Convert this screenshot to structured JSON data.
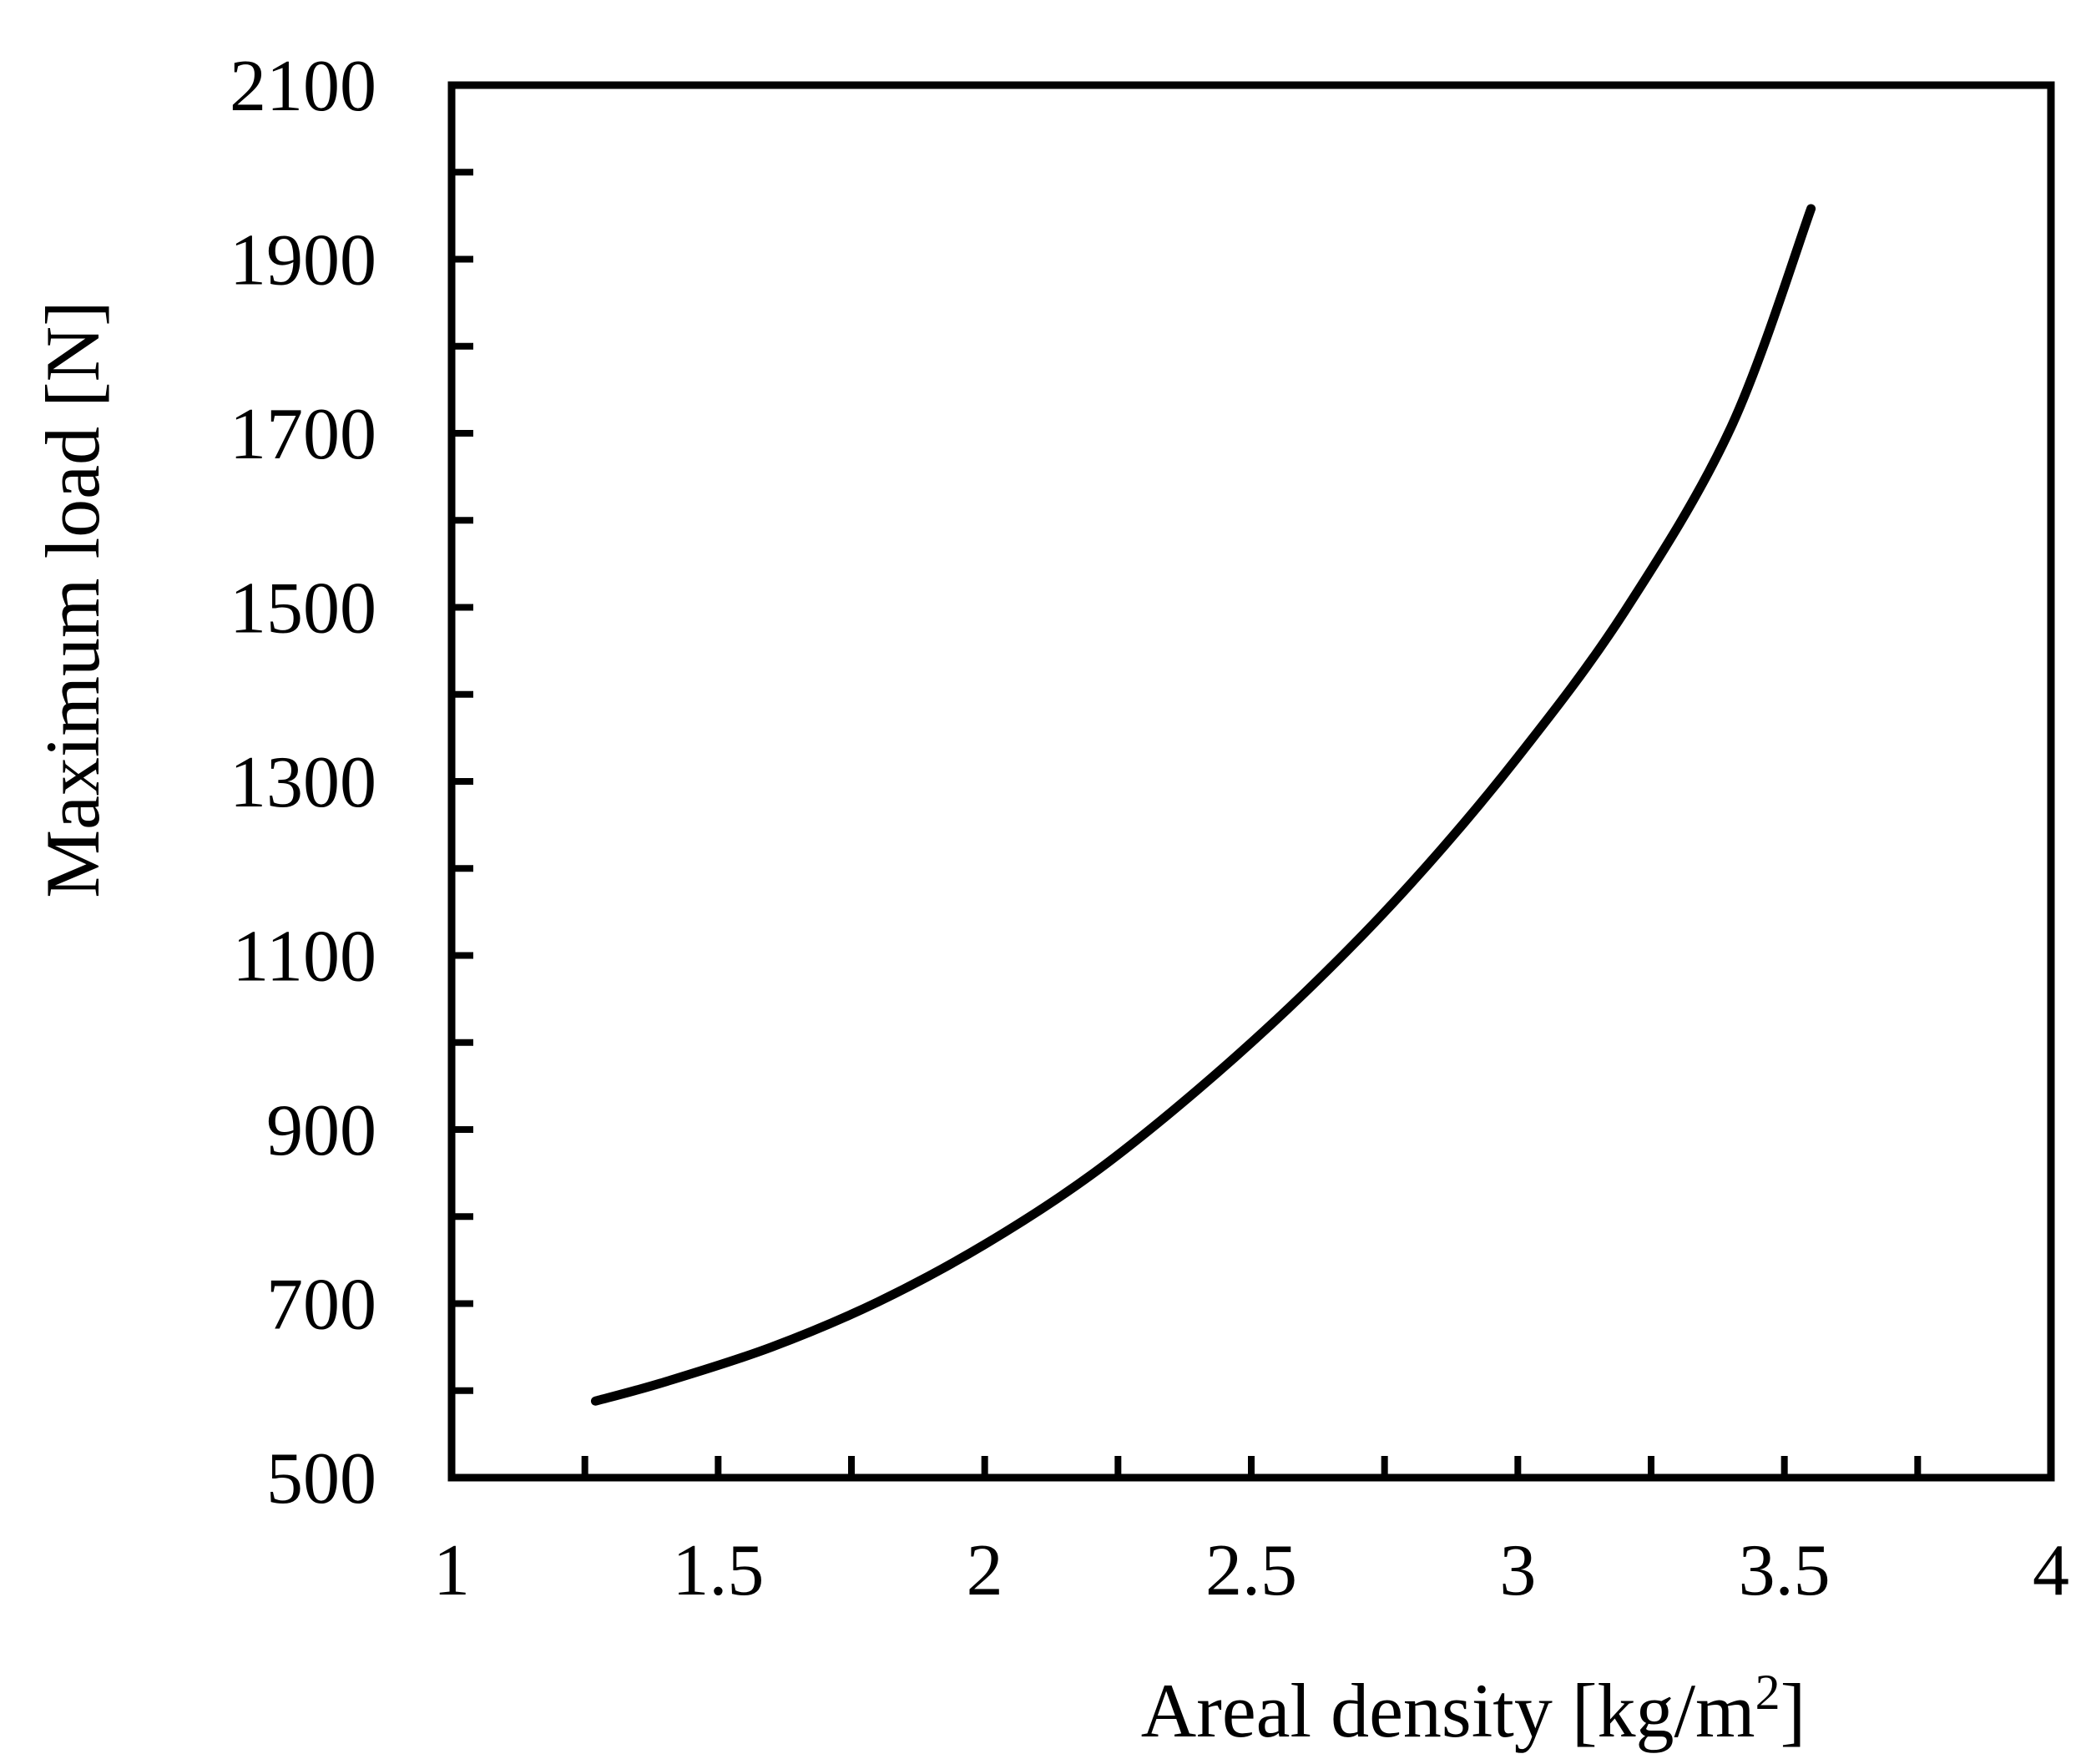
{
  "chart_data": {
    "type": "line",
    "title": "",
    "xlabel": "Areal density [kg/m",
    "xlabel_sup": "2",
    "xlabel_end": "]",
    "ylabel": "Maximum load [N]",
    "xlim": [
      1,
      4
    ],
    "ylim": [
      500,
      2100
    ],
    "x_ticks": [
      1,
      1.5,
      2,
      2.5,
      3,
      3.5,
      4
    ],
    "x_tick_labels": [
      "1",
      "1.5",
      "2",
      "2.5",
      "3",
      "3.5",
      "4"
    ],
    "y_ticks": [
      500,
      700,
      900,
      1100,
      1300,
      1500,
      1700,
      1900,
      2100
    ],
    "y_tick_labels": [
      "500",
      "700",
      "900",
      "1100",
      "1300",
      "1500",
      "1700",
      "1900",
      "2100"
    ],
    "x_minor_step": 0.25,
    "y_minor_step": 100,
    "grid": false,
    "legend": "none",
    "series": [
      {
        "color": "#000000",
        "x": [
          1.27,
          1.4,
          1.6,
          1.8,
          2.0,
          2.2,
          2.4,
          2.6,
          2.8,
          3.0,
          3.2,
          3.4,
          3.55
        ],
        "y": [
          588,
          610,
          650,
          702,
          768,
          848,
          946,
          1057,
          1183,
          1328,
          1495,
          1707,
          1958
        ]
      }
    ]
  }
}
